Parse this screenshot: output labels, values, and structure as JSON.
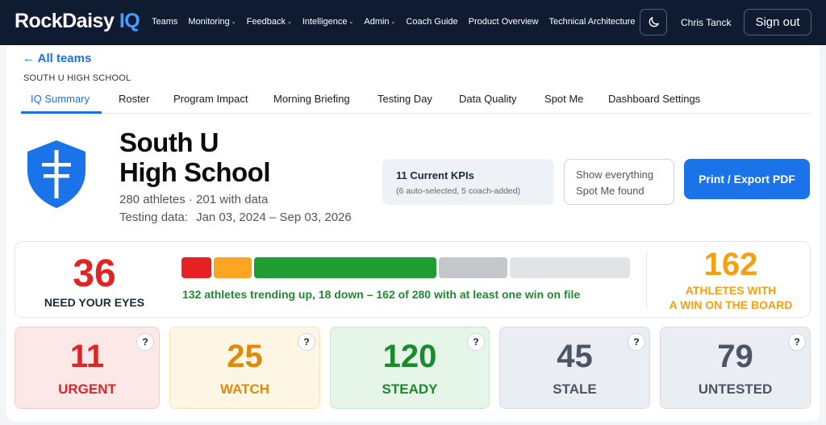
{
  "brand": {
    "name": "RockDaisy",
    "suffix": "IQ"
  },
  "nav": {
    "items": [
      {
        "label": "Teams",
        "dropdown": false
      },
      {
        "label": "Monitoring",
        "dropdown": true
      },
      {
        "label": "Feedback",
        "dropdown": true
      },
      {
        "label": "Intelligence",
        "dropdown": true
      },
      {
        "label": "Admin",
        "dropdown": true
      },
      {
        "label": "Coach Guide",
        "dropdown": false
      },
      {
        "label": "Product Overview",
        "dropdown": false
      },
      {
        "label": "Technical Architecture",
        "dropdown": false
      }
    ],
    "user_name": "Chris Tanck",
    "sign_out": "Sign out"
  },
  "page": {
    "back_link": "← All teams",
    "breadcrumb": "SOUTH U HIGH SCHOOL",
    "tabs": [
      "IQ Summary",
      "Roster",
      "Program Impact",
      "Morning Briefing",
      "Testing Day",
      "Data Quality",
      "Spot Me",
      "Dashboard Settings"
    ],
    "active_tab": "IQ Summary"
  },
  "school": {
    "name_line1": "South U",
    "name_line2": "High School",
    "athletes": "280 athletes · 201 with data",
    "testing_label": "Testing data:",
    "testing_range": "Jan 03, 2024 – Sep 03, 2026"
  },
  "kpi": {
    "title": "11 Current KPIs",
    "subtitle": "(6 auto-selected, 5 coach-added)"
  },
  "actions": {
    "show_line1": "Show everything",
    "show_line2": "Spot Me found",
    "print": "Print / Export PDF"
  },
  "summary": {
    "eyes_count": "36",
    "eyes_label": "NEED YOUR EYES",
    "trend_text": "132 athletes trending up, 18 down – 162 of 280 with at least one win on file",
    "wins_count": "162",
    "wins_label_line1": "ATHLETES WITH",
    "wins_label_line2": "A WIN ON THE BOARD",
    "bar_segments": [
      {
        "status": "urgent",
        "value": 11,
        "color": "#e52121"
      },
      {
        "status": "watch",
        "value": 25,
        "color": "#fba523"
      },
      {
        "status": "steady",
        "value": 120,
        "color": "#1f9c32"
      },
      {
        "status": "stale",
        "value": 45,
        "color": "#c4c7cc"
      },
      {
        "status": "untested",
        "value": 79,
        "color": "#e1e3e7"
      }
    ]
  },
  "cards": [
    {
      "count": "11",
      "label": "URGENT",
      "color": "#e02424",
      "bg": "#fde8e8",
      "border": "#f8caca"
    },
    {
      "count": "25",
      "label": "WATCH",
      "color": "#e08a0a",
      "bg": "#fef6e4",
      "border": "#f8e3b5"
    },
    {
      "count": "120",
      "label": "STEADY",
      "color": "#1a8a2c",
      "bg": "#e5f5e7",
      "border": "#c5e8cb"
    },
    {
      "count": "45",
      "label": "STALE",
      "color": "#4a5566",
      "bg": "#eaedf2",
      "border": "#d6dbe3"
    },
    {
      "count": "79",
      "label": "UNTESTED",
      "color": "#4a5566",
      "bg": "#eaedf2",
      "border": "#d6dbe3"
    }
  ],
  "help_label": "?"
}
